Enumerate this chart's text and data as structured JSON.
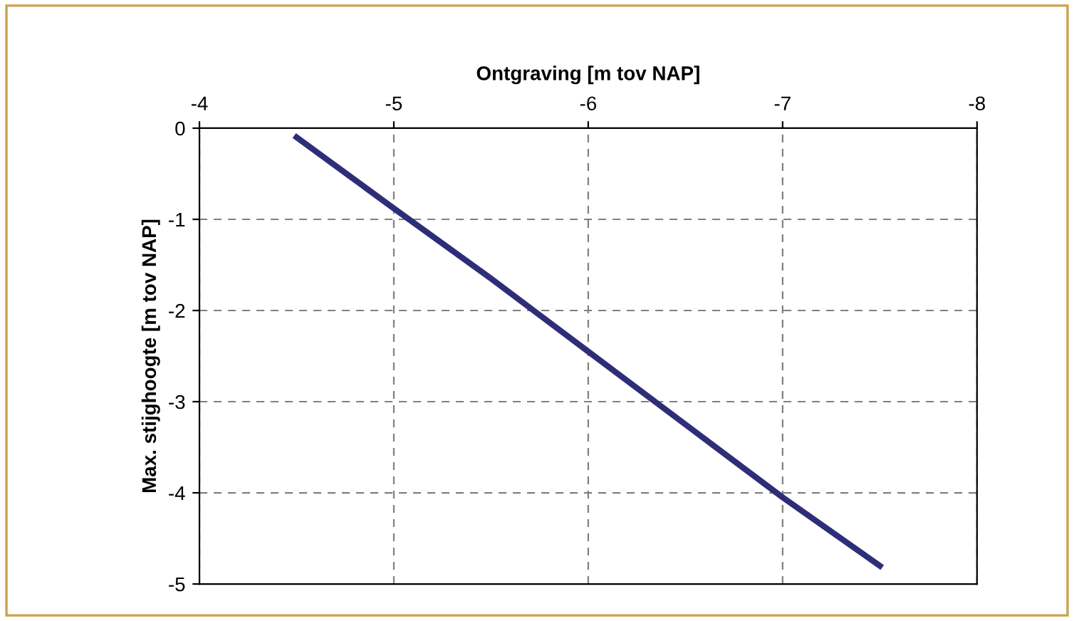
{
  "chart_data": {
    "type": "line",
    "xlabel": "Ontgraving [m tov NAP]",
    "ylabel": "Max. stijghoogte [m tov NAP]",
    "x": [
      -4.5,
      -5,
      -5.5,
      -6,
      -6.5,
      -7,
      -7.5
    ],
    "series": [
      {
        "color": "#2e2e78",
        "values": [
          -0.1,
          -0.88,
          -1.65,
          -2.45,
          -3.25,
          -4.05,
          -4.8
        ]
      }
    ],
    "xlim": [
      -4,
      -8
    ],
    "xticks": [
      -4,
      -5,
      -6,
      -7,
      -8
    ],
    "ylim": [
      -5,
      0
    ],
    "yticks": [
      0,
      -1,
      -2,
      -3,
      -4,
      -5
    ],
    "grid": true,
    "line_style": "solid",
    "marker": "none",
    "legend": false
  }
}
